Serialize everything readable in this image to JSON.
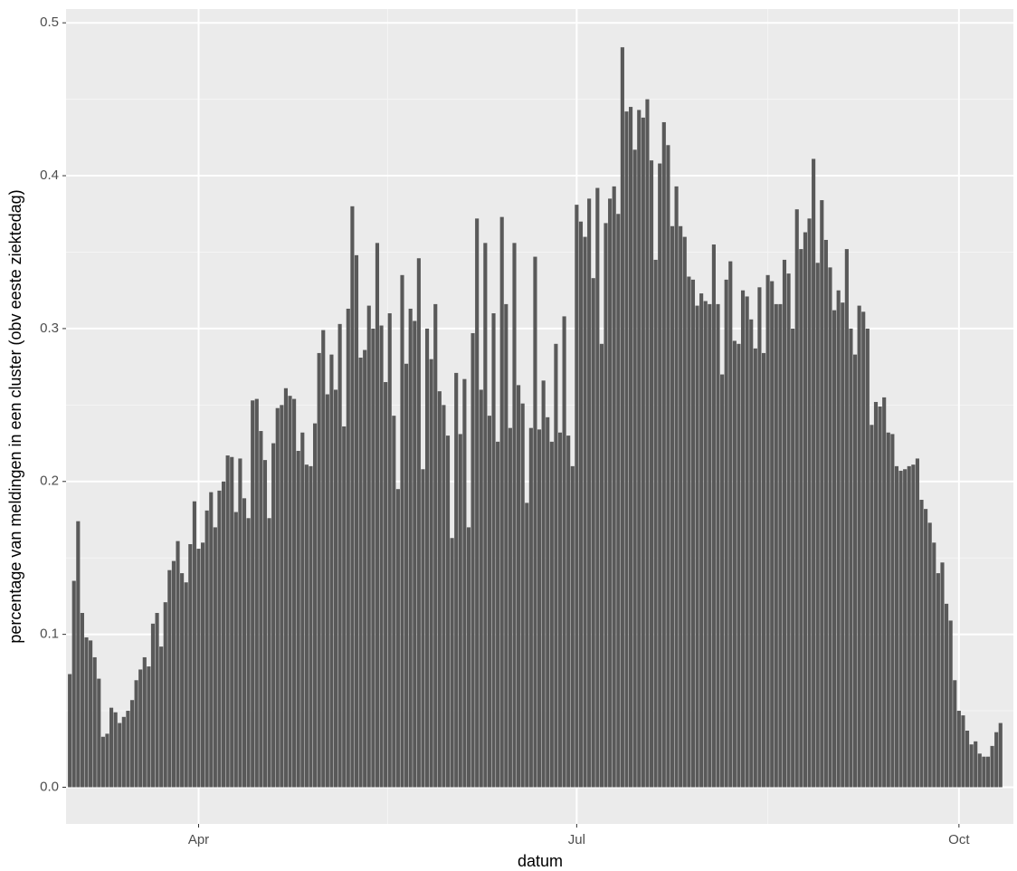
{
  "chart_data": {
    "type": "bar",
    "x_label": "datum",
    "y_label": "percentage van meldingen in een cluster (obv eeste ziektedag)",
    "categories": [
      null,
      null,
      null,
      null,
      null,
      null,
      null,
      null,
      null,
      null,
      null,
      null,
      null,
      null,
      null,
      null,
      null,
      null,
      null,
      null,
      null,
      null,
      null,
      null,
      null,
      null,
      null,
      null,
      null,
      null,
      null,
      "Apr",
      null,
      null,
      null,
      null,
      null,
      null,
      null,
      null,
      null,
      null,
      null,
      null,
      null,
      null,
      null,
      null,
      null,
      null,
      null,
      null,
      null,
      null,
      null,
      null,
      null,
      null,
      null,
      null,
      null,
      null,
      null,
      null,
      null,
      null,
      null,
      null,
      null,
      null,
      null,
      null,
      null,
      null,
      null,
      null,
      null,
      null,
      null,
      null,
      null,
      null,
      null,
      null,
      null,
      null,
      null,
      null,
      null,
      null,
      null,
      null,
      null,
      null,
      null,
      null,
      null,
      null,
      null,
      null,
      null,
      null,
      null,
      null,
      null,
      null,
      null,
      null,
      null,
      null,
      null,
      null,
      null,
      null,
      null,
      null,
      null,
      null,
      null,
      null,
      null,
      null,
      "Jul",
      null,
      null,
      null,
      null,
      null,
      null,
      null,
      null,
      null,
      null,
      null,
      null,
      null,
      null,
      null,
      null,
      null,
      null,
      null,
      null,
      null,
      null,
      null,
      null,
      null,
      null,
      null,
      null,
      null,
      null,
      null,
      null,
      null,
      null,
      null,
      null,
      null,
      null,
      null,
      null,
      null,
      null,
      null,
      null,
      null,
      null,
      null,
      null,
      null,
      null,
      null,
      null,
      null,
      null,
      null,
      null,
      null,
      null,
      null,
      null,
      null,
      null,
      null,
      null,
      null,
      null,
      null,
      null,
      null,
      null,
      null,
      null,
      null,
      null,
      null,
      null,
      null,
      null,
      null,
      null,
      null,
      null,
      null,
      null,
      null,
      null,
      null,
      null,
      null,
      null,
      null,
      "Oct",
      null,
      null,
      null,
      null,
      null,
      null,
      null,
      null,
      null,
      null
    ],
    "values": [
      0.074,
      0.135,
      0.174,
      0.114,
      0.098,
      0.096,
      0.085,
      0.071,
      0.033,
      0.035,
      0.052,
      0.049,
      0.042,
      0.046,
      0.05,
      0.057,
      0.07,
      0.077,
      0.085,
      0.079,
      0.107,
      0.114,
      0.092,
      0.121,
      0.142,
      0.148,
      0.161,
      0.14,
      0.134,
      0.159,
      0.187,
      0.156,
      0.16,
      0.181,
      0.193,
      0.17,
      0.194,
      0.2,
      0.217,
      0.216,
      0.18,
      0.215,
      0.189,
      0.176,
      0.253,
      0.254,
      0.233,
      0.214,
      0.176,
      0.225,
      0.248,
      0.25,
      0.261,
      0.256,
      0.254,
      0.22,
      0.232,
      0.211,
      0.21,
      0.238,
      0.284,
      0.299,
      0.257,
      0.283,
      0.26,
      0.303,
      0.236,
      0.313,
      0.38,
      0.348,
      0.281,
      0.286,
      0.315,
      0.3,
      0.356,
      0.302,
      0.265,
      0.31,
      0.243,
      0.195,
      0.335,
      0.277,
      0.313,
      0.305,
      0.346,
      0.208,
      0.3,
      0.28,
      0.316,
      0.259,
      0.25,
      0.23,
      0.163,
      0.271,
      0.231,
      0.267,
      0.17,
      0.297,
      0.372,
      0.26,
      0.356,
      0.243,
      0.31,
      0.226,
      0.373,
      0.316,
      0.235,
      0.356,
      0.263,
      0.251,
      0.186,
      0.235,
      0.347,
      0.234,
      0.266,
      0.242,
      0.226,
      0.29,
      0.232,
      0.308,
      0.23,
      0.21,
      0.381,
      0.37,
      0.36,
      0.385,
      0.333,
      0.392,
      0.29,
      0.369,
      0.385,
      0.393,
      0.375,
      0.484,
      0.442,
      0.445,
      0.417,
      0.443,
      0.438,
      0.45,
      0.41,
      0.345,
      0.408,
      0.435,
      0.42,
      0.367,
      0.393,
      0.367,
      0.36,
      0.334,
      0.332,
      0.315,
      0.323,
      0.318,
      0.316,
      0.355,
      0.316,
      0.27,
      0.332,
      0.344,
      0.292,
      0.29,
      0.325,
      0.321,
      0.306,
      0.287,
      0.327,
      0.284,
      0.335,
      0.331,
      0.316,
      0.316,
      0.345,
      0.336,
      0.3,
      0.378,
      0.352,
      0.363,
      0.372,
      0.411,
      0.343,
      0.384,
      0.358,
      0.34,
      0.312,
      0.325,
      0.317,
      0.352,
      0.3,
      0.283,
      0.315,
      0.311,
      0.3,
      0.237,
      0.252,
      0.249,
      0.255,
      0.232,
      0.231,
      0.21,
      0.207,
      0.208,
      0.21,
      0.211,
      0.215,
      0.188,
      0.182,
      0.173,
      0.16,
      0.14,
      0.147,
      0.12,
      0.109,
      0.07,
      0.05,
      0.047,
      0.037,
      0.028,
      0.03,
      0.022,
      0.02,
      0.02,
      0.027,
      0.036,
      0.042
    ],
    "color": "#595959",
    "ylim": [
      -0.024,
      0.509
    ],
    "yticks": [
      {
        "value": 0,
        "label": "0.0"
      },
      0.1,
      0.2,
      0.3,
      0.4,
      0.5
    ],
    "grid": true
  }
}
